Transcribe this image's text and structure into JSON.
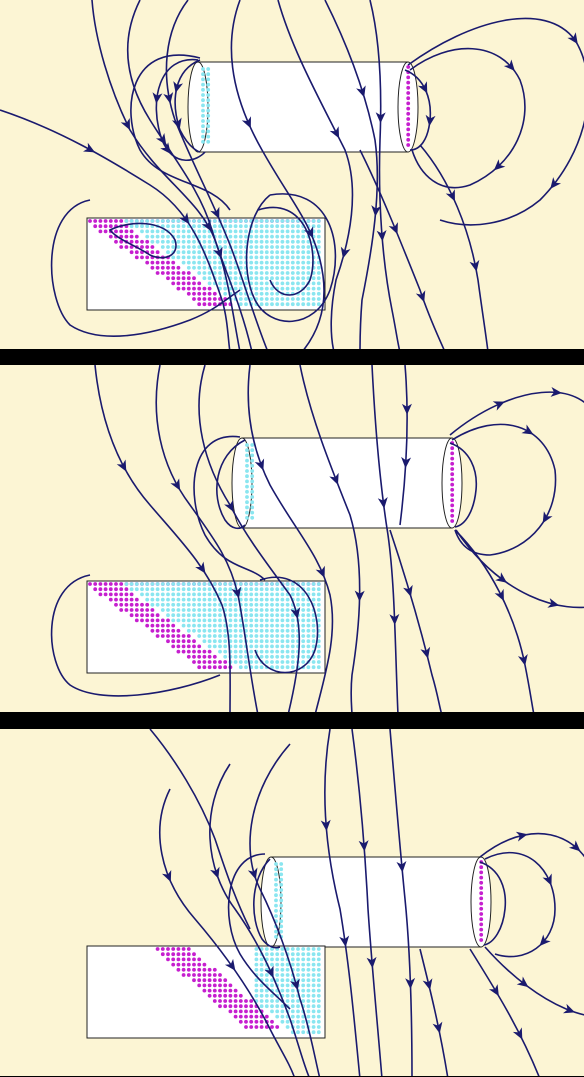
{
  "colors": {
    "background": "#fcf5d4",
    "separator": "#000000",
    "field_line": "#1a1a6e",
    "positive_charge": "#c61fcf",
    "negative_charge": "#8ae6f0",
    "conductor_fill": "#ffffff"
  },
  "panels": [
    {
      "id": "panel-1",
      "arrow_count": 30
    },
    {
      "id": "panel-2",
      "arrow_count": 24
    },
    {
      "id": "panel-3",
      "arrow_count": 22
    }
  ]
}
